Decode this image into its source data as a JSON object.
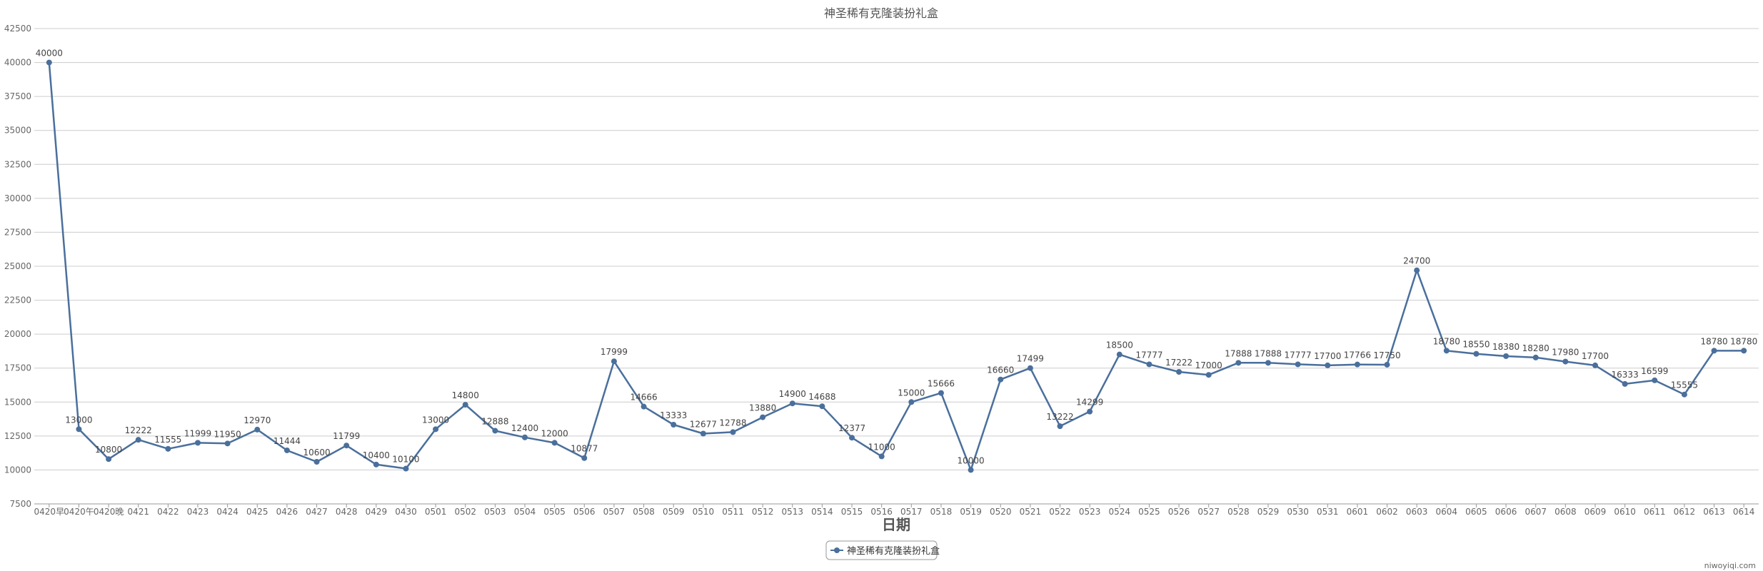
{
  "chart_data": {
    "type": "line",
    "title": "神圣稀有克隆装扮礼盒",
    "xlabel": "日期",
    "ylabel": "",
    "ylim": [
      7500,
      42500
    ],
    "yticks": [
      7500,
      10000,
      12500,
      15000,
      17500,
      20000,
      22500,
      25000,
      27500,
      30000,
      32500,
      35000,
      37500,
      40000,
      42500
    ],
    "grid": true,
    "legend_position": "bottom-center",
    "categories": [
      "0420早",
      "0420午",
      "0420晚",
      "0421",
      "0422",
      "0423",
      "0424",
      "0425",
      "0426",
      "0427",
      "0428",
      "0429",
      "0430",
      "0501",
      "0502",
      "0503",
      "0504",
      "0505",
      "0506",
      "0507",
      "0508",
      "0509",
      "0510",
      "0511",
      "0512",
      "0513",
      "0514",
      "0515",
      "0516",
      "0517",
      "0518",
      "0519",
      "0520",
      "0521",
      "0522",
      "0523",
      "0524",
      "0525",
      "0526",
      "0527",
      "0528",
      "0529",
      "0530",
      "0531",
      "0601",
      "0602",
      "0603",
      "0604",
      "0605",
      "0606",
      "0607",
      "0608",
      "0609",
      "0610",
      "0611",
      "0612",
      "0613",
      "0614"
    ],
    "series": [
      {
        "name": "神圣稀有克隆装扮礼盒",
        "color": "#4a6f9c",
        "values": [
          40000,
          13000,
          10800,
          12222,
          11555,
          11999,
          11950,
          12970,
          11444,
          10600,
          11799,
          10400,
          10100,
          13000,
          14800,
          12888,
          12400,
          12000,
          10877,
          17999,
          14666,
          13333,
          12677,
          12788,
          13880,
          14900,
          14688,
          12377,
          11000,
          15000,
          15666,
          10000,
          16660,
          17499,
          13222,
          14299,
          18500,
          17777,
          17222,
          17000,
          17888,
          17888,
          17777,
          17700,
          17766,
          17750,
          24700,
          18780,
          18550,
          18380,
          18280,
          17980,
          17700,
          16333,
          16599,
          15555,
          18780,
          18780
        ]
      }
    ],
    "watermark": "niwoyiqi.com",
    "colors": {
      "line": "#4a6f9c",
      "grid": "#cccccc",
      "axis": "#999999"
    }
  }
}
